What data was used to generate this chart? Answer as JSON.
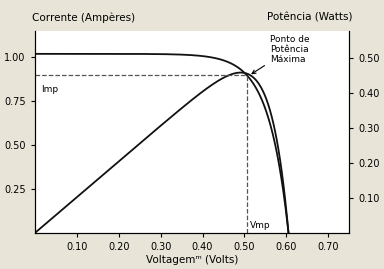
{
  "xlabel": "Voltagemᵐ (Volts)",
  "ylabel_left": "Corrente (Ampères)",
  "ylabel_right": "Potência (Watts)",
  "background_color": "#e8e4d8",
  "plot_bg_color": "#ffffff",
  "Isc": 1.02,
  "Voc": 0.605,
  "Imp": 0.9,
  "Vmp": 0.505,
  "xlim": [
    0,
    0.75
  ],
  "ylim_left": [
    0,
    1.15
  ],
  "ylim_right": [
    0,
    0.5755
  ],
  "xticks": [
    0.1,
    0.2,
    0.3,
    0.4,
    0.5,
    0.6,
    0.7
  ],
  "yticks_left": [
    0.25,
    0.5,
    0.75,
    1.0
  ],
  "yticks_right": [
    0.1,
    0.2,
    0.3,
    0.4,
    0.5
  ],
  "dashed_color": "#555555",
  "curve_color": "#111111",
  "annotation_text": "Ponto de\nPotência\nMáxima",
  "Imp_label": "Imp",
  "Vmp_label": "Vmp",
  "fontsize_axis_label": 7.5,
  "fontsize_tick": 7,
  "fontsize_annotation": 6.5
}
